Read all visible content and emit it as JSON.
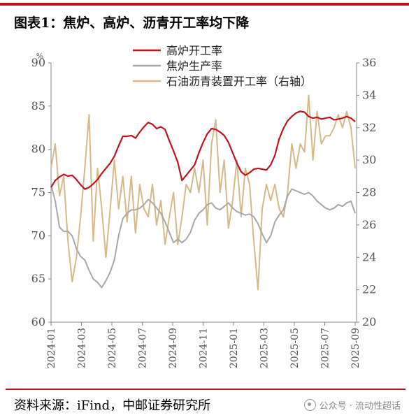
{
  "title": "图表1：焦炉、高炉、沥青开工率均下降",
  "source": "资料来源：iFind，中邮证券研究所",
  "watermark": {
    "text": "公众号 · 流动性超话",
    "icon": "wechat-icon"
  },
  "chart_data": {
    "type": "line",
    "title": "",
    "y_left_unit": "%",
    "y_left_lim": [
      60,
      90
    ],
    "y_left_ticks": [
      "60",
      "65",
      "70",
      "75",
      "80",
      "85",
      "90"
    ],
    "y_right_lim": [
      20,
      36
    ],
    "y_right_ticks": [
      "20",
      "22",
      "24",
      "26",
      "28",
      "30",
      "32",
      "34",
      "36"
    ],
    "x_tick_labels": [
      "2024-01",
      "2024-03",
      "2024-05",
      "2024-07",
      "2024-09",
      "2024-11",
      "2025-01",
      "2025-03",
      "2025-05",
      "2025-07",
      "2025-09"
    ],
    "grid": false,
    "legend_position": "top-center",
    "series": [
      {
        "name": "高炉开工率",
        "axis": "left",
        "color": "#c0141c",
        "values": [
          75.6,
          76.4,
          76.8,
          77.1,
          76.9,
          77.0,
          76.5,
          75.9,
          75.4,
          75.6,
          76.0,
          76.5,
          77.2,
          77.8,
          78.4,
          79.2,
          80.4,
          81.5,
          81.5,
          81.6,
          81.3,
          82.0,
          82.6,
          83.1,
          82.9,
          82.4,
          82.6,
          82.3,
          81.0,
          79.8,
          78.5,
          76.4,
          77.0,
          77.6,
          78.2,
          79.6,
          80.8,
          81.8,
          82.4,
          82.3,
          82.0,
          81.6,
          80.8,
          79.6,
          78.4,
          77.4,
          77.0,
          77.3,
          77.7,
          77.8,
          77.7,
          77.6,
          78.2,
          79.3,
          81.2,
          82.4,
          83.3,
          83.8,
          84.2,
          84.4,
          84.3,
          83.8,
          83.6,
          83.7,
          83.5,
          83.6,
          83.7,
          83.4,
          83.5,
          83.6,
          83.8,
          83.6,
          83.2
        ]
      },
      {
        "name": "焦炉生产率",
        "axis": "left",
        "color": "#a8a8a8",
        "values": [
          75.9,
          74.0,
          71.0,
          70.5,
          70.5,
          70.0,
          68.5,
          67.6,
          67.2,
          66.0,
          65.0,
          64.6,
          64.0,
          64.8,
          65.8,
          67.2,
          70.0,
          72.0,
          72.6,
          73.0,
          73.0,
          73.2,
          73.6,
          74.2,
          73.8,
          73.2,
          72.6,
          71.6,
          70.4,
          69.2,
          69.6,
          69.2,
          69.6,
          70.4,
          71.8,
          72.6,
          73.0,
          73.6,
          73.8,
          73.2,
          73.0,
          73.4,
          73.8,
          73.2,
          72.8,
          72.6,
          72.4,
          72.5,
          72.2,
          71.4,
          70.2,
          69.2,
          70.0,
          71.6,
          72.4,
          73.0,
          74.6,
          75.4,
          75.2,
          75.0,
          74.8,
          75.0,
          74.6,
          74.0,
          73.6,
          73.2,
          73.0,
          73.2,
          73.6,
          73.4,
          73.8,
          74.0,
          72.6
        ]
      },
      {
        "name": "石油沥青装置开工率（右轴）",
        "axis": "right",
        "color": "#d6b98a",
        "values": [
          29.5,
          31.0,
          27.8,
          29.0,
          25.0,
          22.5,
          24.0,
          26.5,
          29.5,
          32.8,
          25.0,
          29.5,
          27.0,
          24.0,
          27.0,
          30.0,
          27.0,
          29.0,
          26.2,
          29.0,
          25.5,
          28.5,
          27.0,
          26.5,
          28.5,
          26.0,
          27.5,
          24.8,
          26.5,
          28.0,
          24.8,
          26.5,
          28.5,
          28.0,
          29.5,
          28.0,
          30.0,
          26.0,
          31.0,
          32.5,
          28.0,
          30.0,
          25.8,
          27.5,
          30.0,
          26.5,
          29.5,
          28.5,
          25.0,
          22.0,
          27.0,
          28.5,
          27.5,
          28.5,
          27.0,
          26.5,
          28.0,
          31.0,
          29.5,
          31.0,
          30.5,
          34.0,
          30.0,
          33.0,
          31.0,
          31.5,
          31.5,
          32.0,
          32.8,
          32.0,
          33.0,
          32.0,
          29.5
        ]
      }
    ]
  }
}
